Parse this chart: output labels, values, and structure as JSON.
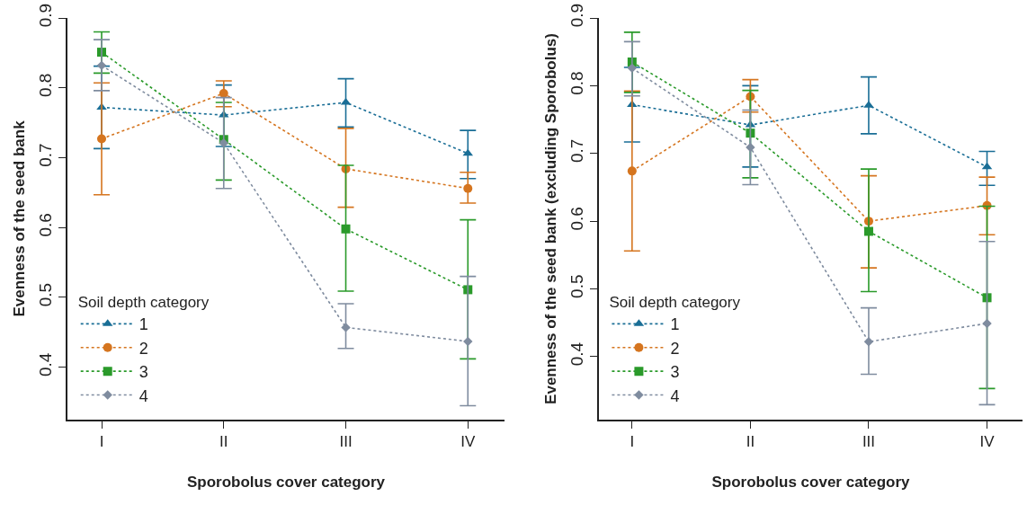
{
  "chart_data": [
    {
      "type": "line",
      "xlabel": "Sporobolus cover category",
      "ylabel": "Evenness of the seed bank",
      "legend_title": "Soil depth category",
      "legend": "bottom left",
      "line_style": "dotted",
      "grid": false,
      "categories": [
        "I",
        "II",
        "III",
        "IV"
      ],
      "ylim": [
        0.325,
        0.9
      ],
      "yticks": [
        0.4,
        0.5,
        0.6,
        0.7,
        0.8,
        0.9
      ],
      "series": [
        {
          "name": "1",
          "color": "#1a6e96",
          "marker": "triangle",
          "values": [
            0.772,
            0.761,
            0.779,
            0.706
          ],
          "errors": [
            [
              0.713,
              0.831
            ],
            [
              0.716,
              0.804
            ],
            [
              0.744,
              0.813
            ],
            [
              0.67,
              0.739
            ]
          ]
        },
        {
          "name": "2",
          "color": "#d5751f",
          "marker": "circle",
          "values": [
            0.727,
            0.792,
            0.684,
            0.656
          ],
          "errors": [
            [
              0.647,
              0.807
            ],
            [
              0.773,
              0.81
            ],
            [
              0.629,
              0.742
            ],
            [
              0.635,
              0.679
            ]
          ]
        },
        {
          "name": "3",
          "color": "#2a9a2a",
          "marker": "square",
          "values": [
            0.851,
            0.726,
            0.598,
            0.511
          ],
          "errors": [
            [
              0.821,
              0.88
            ],
            [
              0.668,
              0.779
            ],
            [
              0.509,
              0.689
            ],
            [
              0.412,
              0.611
            ]
          ]
        },
        {
          "name": "4",
          "color": "#7f8c9f",
          "marker": "diamond",
          "values": [
            0.832,
            0.721,
            0.457,
            0.437
          ],
          "errors": [
            [
              0.796,
              0.869
            ],
            [
              0.656,
              0.786
            ],
            [
              0.427,
              0.491
            ],
            [
              0.345,
              0.53
            ]
          ]
        }
      ]
    },
    {
      "type": "line",
      "xlabel": "Sporobolus cover category",
      "ylabel": "Evenness of the seed bank (excluding Sporobolus)",
      "legend_title": "Soil depth category",
      "legend": "bottom left",
      "line_style": "dotted",
      "grid": false,
      "categories": [
        "I",
        "II",
        "III",
        "IV"
      ],
      "ylim": [
        0.307,
        0.9
      ],
      "yticks": [
        0.4,
        0.5,
        0.6,
        0.7,
        0.8,
        0.9
      ],
      "series": [
        {
          "name": "1",
          "color": "#1a6e96",
          "marker": "triangle",
          "values": [
            0.772,
            0.742,
            0.771,
            0.68
          ],
          "errors": [
            [
              0.717,
              0.827
            ],
            [
              0.68,
              0.8
            ],
            [
              0.729,
              0.813
            ],
            [
              0.653,
              0.703
            ]
          ]
        },
        {
          "name": "2",
          "color": "#d5751f",
          "marker": "circle",
          "values": [
            0.674,
            0.784,
            0.6,
            0.623
          ],
          "errors": [
            [
              0.556,
              0.792
            ],
            [
              0.761,
              0.809
            ],
            [
              0.531,
              0.667
            ],
            [
              0.58,
              0.665
            ]
          ]
        },
        {
          "name": "3",
          "color": "#2a9a2a",
          "marker": "square",
          "values": [
            0.835,
            0.73,
            0.585,
            0.487
          ],
          "errors": [
            [
              0.79,
              0.879
            ],
            [
              0.664,
              0.793
            ],
            [
              0.496,
              0.677
            ],
            [
              0.353,
              0.622
            ]
          ]
        },
        {
          "name": "4",
          "color": "#7f8c9f",
          "marker": "diamond",
          "values": [
            0.826,
            0.709,
            0.422,
            0.449
          ],
          "errors": [
            [
              0.785,
              0.865
            ],
            [
              0.654,
              0.764
            ],
            [
              0.374,
              0.472
            ],
            [
              0.329,
              0.57
            ]
          ]
        }
      ]
    }
  ]
}
